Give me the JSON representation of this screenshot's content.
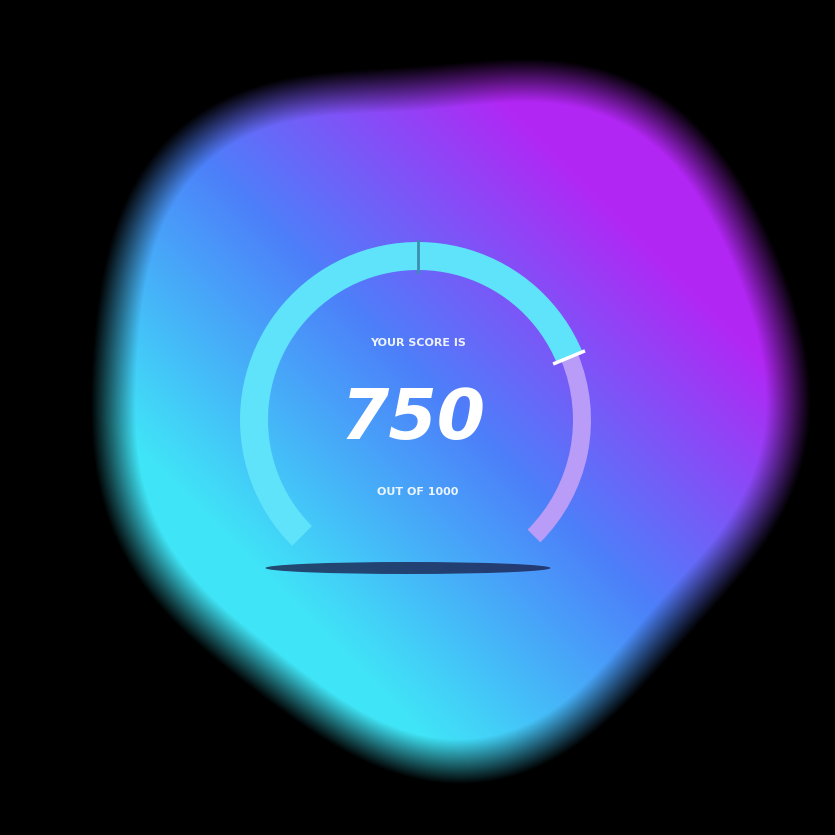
{
  "chart_data": {
    "type": "gauge",
    "title": "YOUR SCORE IS",
    "value": 750,
    "caption": "OUT OF 1000",
    "range": [
      0,
      1000
    ]
  }
}
